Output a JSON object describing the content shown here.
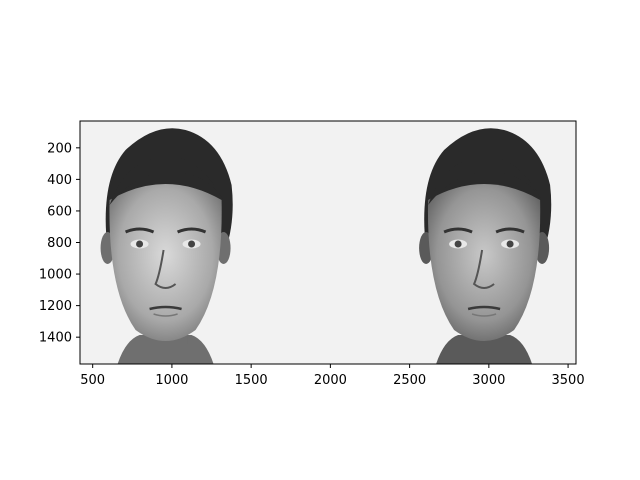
{
  "figure": {
    "background": "#ffffff",
    "image_background": "#f2f2f2",
    "x_ticks": [
      {
        "value": 500,
        "label": "500"
      },
      {
        "value": 1000,
        "label": "1000"
      },
      {
        "value": 1500,
        "label": "1500"
      },
      {
        "value": 2000,
        "label": "2000"
      },
      {
        "value": 2500,
        "label": "2500"
      },
      {
        "value": 3000,
        "label": "3000"
      },
      {
        "value": 3500,
        "label": "3500"
      }
    ],
    "y_ticks": [
      {
        "value": 200,
        "label": "200"
      },
      {
        "value": 400,
        "label": "400"
      },
      {
        "value": 600,
        "label": "600"
      },
      {
        "value": 800,
        "label": "800"
      },
      {
        "value": 1000,
        "label": "1000"
      },
      {
        "value": 1200,
        "label": "1200"
      },
      {
        "value": 1400,
        "label": "1400"
      }
    ],
    "x_range": [
      420,
      3550
    ],
    "y_range": [
      1570,
      30
    ],
    "faces": [
      {
        "name": "left-face",
        "center_x": 960,
        "tone": "#6f6f6f"
      },
      {
        "name": "right-face",
        "center_x": 2970,
        "tone": "#5a5a5a"
      }
    ]
  }
}
